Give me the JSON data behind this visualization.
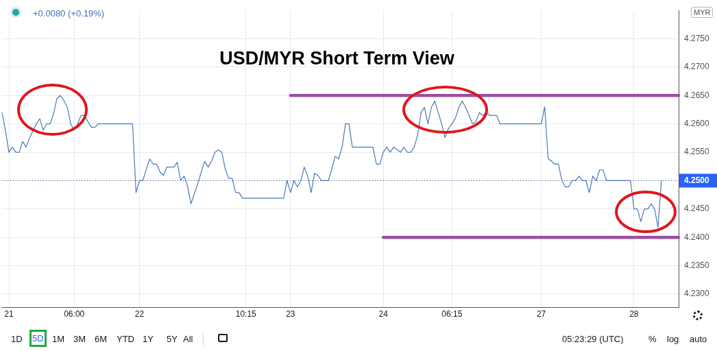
{
  "chart_data": {
    "type": "line",
    "title": "USD/MYR Short Term View",
    "categories": [
      null,
      null,
      "21",
      null,
      null,
      null,
      null,
      null,
      null,
      null,
      null,
      null,
      null,
      null,
      null,
      null,
      null,
      null,
      null,
      null,
      null,
      "06:00",
      null,
      null,
      null,
      null,
      null,
      null,
      null,
      null,
      null,
      null,
      null,
      null,
      null,
      null,
      null,
      null,
      null,
      null,
      "22",
      null,
      null,
      null,
      null,
      null,
      null,
      null,
      null,
      null,
      null,
      null,
      null,
      null,
      null,
      null,
      null,
      null,
      null,
      null,
      null,
      null,
      null,
      null,
      null,
      null,
      null,
      null,
      null,
      null,
      null,
      "10:15",
      null,
      null,
      null,
      null,
      null,
      null,
      null,
      null,
      null,
      null,
      null,
      null,
      "23",
      null,
      null,
      null,
      null,
      null,
      null,
      null,
      null,
      null,
      null,
      null,
      null,
      null,
      null,
      null,
      null,
      null,
      null,
      null,
      null,
      null,
      null,
      null,
      null,
      null,
      null,
      "24",
      null,
      null,
      null,
      null,
      null,
      null,
      null,
      null,
      null,
      null,
      null,
      null,
      null,
      null,
      null,
      null,
      null,
      null,
      null,
      "06:15",
      null,
      null,
      null,
      null,
      null,
      null,
      null,
      null,
      null,
      null,
      null,
      null,
      null,
      null,
      null,
      null,
      null,
      null,
      null,
      null,
      null,
      null,
      null,
      null,
      null,
      "27",
      null,
      null,
      null,
      null,
      null,
      null,
      null,
      null,
      null,
      null,
      null,
      null,
      null,
      null,
      null,
      null,
      null,
      null,
      null,
      null,
      null,
      null,
      null,
      null,
      null,
      null,
      "28",
      null,
      null,
      null,
      null,
      null,
      null,
      null,
      null,
      null,
      null,
      null,
      null,
      null
    ],
    "ylim": [
      4.2277,
      4.28
    ],
    "yticks": [
      {
        "value": 4.23,
        "label": "4.2300"
      },
      {
        "value": 4.235,
        "label": "4.2350"
      },
      {
        "value": 4.24,
        "label": "4.2400"
      },
      {
        "value": 4.245,
        "label": "4.2450"
      },
      {
        "value": 4.25,
        "label": null
      },
      {
        "value": 4.255,
        "label": "4.2550"
      },
      {
        "value": 4.26,
        "label": "4.2600"
      },
      {
        "value": 4.265,
        "label": "4.2650"
      },
      {
        "value": 4.27,
        "label": "4.2700"
      },
      {
        "value": 4.275,
        "label": "4.2750"
      }
    ],
    "grid": true,
    "legend": false,
    "marker": "none",
    "line_style": "solid",
    "ref_lines": [
      {
        "axis": "y",
        "value": 4.25,
        "label": "4.2500",
        "color": "#2f5597",
        "line_style": "dotted"
      }
    ],
    "annotations": [
      "+0.0080 (+0.19%)",
      "MYR",
      "1D",
      "5D",
      "1M",
      "3M",
      "6M",
      "YTD",
      "1Y",
      "5Y",
      "All",
      "05:23:29 (UTC)",
      "%",
      "log",
      "auto"
    ],
    "series": [
      {
        "color": "#4a78b8",
        "values": [
          4.262,
          4.2588,
          4.255,
          4.2559,
          4.255,
          4.255,
          4.2569,
          4.2559,
          4.2575,
          4.2588,
          4.26,
          4.2609,
          4.2589,
          4.26,
          4.26,
          4.2618,
          4.2645,
          4.265,
          4.2641,
          4.2629,
          4.26,
          4.2589,
          4.26,
          4.2615,
          4.2615,
          4.2604,
          4.2594,
          4.2594,
          4.26,
          4.26,
          4.26,
          4.26,
          4.26,
          4.26,
          4.26,
          4.26,
          4.26,
          4.26,
          4.26,
          4.2479,
          4.25,
          4.25,
          4.252,
          4.2538,
          4.2529,
          4.2529,
          4.2515,
          4.2509,
          4.2524,
          4.2524,
          4.2524,
          4.2532,
          4.25,
          4.2508,
          4.2491,
          4.2459,
          4.2477,
          4.2495,
          4.2515,
          4.2534,
          4.2524,
          4.2534,
          4.255,
          4.2554,
          4.255,
          4.252,
          4.2504,
          4.2504,
          4.2479,
          4.2479,
          4.2469,
          4.2469,
          4.2469,
          4.2469,
          4.2469,
          4.2469,
          4.2469,
          4.2469,
          4.2469,
          4.2469,
          4.2469,
          4.2469,
          4.2469,
          4.25,
          4.2479,
          4.25,
          4.2489,
          4.25,
          4.2524,
          4.2508,
          4.2479,
          4.2513,
          4.2509,
          4.25,
          4.25,
          4.25,
          4.252,
          4.2543,
          4.2538,
          4.2559,
          4.26,
          4.26,
          4.2559,
          4.2559,
          4.2559,
          4.2559,
          4.2559,
          4.2559,
          4.2559,
          4.2529,
          4.2529,
          4.255,
          4.2559,
          4.255,
          4.2559,
          4.2555,
          4.255,
          4.2559,
          4.255,
          4.255,
          4.2559,
          4.258,
          4.262,
          4.2629,
          4.26,
          4.2629,
          4.264,
          4.262,
          4.26,
          4.2576,
          4.2592,
          4.26,
          4.261,
          4.2629,
          4.264,
          4.2629,
          4.2615,
          4.26,
          4.2604,
          4.262,
          4.2615,
          4.262,
          4.2615,
          4.2615,
          4.2615,
          4.26,
          4.26,
          4.26,
          4.26,
          4.26,
          4.26,
          4.26,
          4.26,
          4.26,
          4.26,
          4.26,
          4.26,
          4.26,
          4.263,
          4.2539,
          4.2534,
          4.2529,
          4.2529,
          4.25,
          4.2489,
          4.2489,
          4.25,
          4.25,
          4.2508,
          4.25,
          4.25,
          4.2479,
          4.2508,
          4.25,
          4.2519,
          4.2519,
          4.25,
          4.25,
          4.25,
          4.25,
          4.25,
          4.25,
          4.25,
          4.25,
          4.245,
          4.245,
          4.2428,
          4.245,
          4.245,
          4.2459,
          4.245,
          4.2418,
          4.25,
          null,
          null,
          null,
          null,
          null
        ]
      },
      {
        "color": "#9b4ea3",
        "values": [
          null,
          null,
          null,
          null,
          null,
          null,
          null,
          null,
          null,
          null,
          null,
          null,
          null,
          null,
          null,
          null,
          null,
          null,
          null,
          null,
          null,
          null,
          null,
          null,
          null,
          null,
          null,
          null,
          null,
          null,
          null,
          null,
          null,
          null,
          null,
          null,
          null,
          null,
          null,
          null,
          null,
          null,
          null,
          null,
          null,
          null,
          null,
          null,
          null,
          null,
          null,
          null,
          null,
          null,
          null,
          null,
          null,
          null,
          null,
          null,
          null,
          null,
          null,
          null,
          null,
          null,
          null,
          null,
          null,
          null,
          null,
          null,
          null,
          null,
          null,
          null,
          null,
          null,
          null,
          null,
          null,
          null,
          null,
          null,
          4.265,
          4.265,
          4.265,
          4.265,
          4.265,
          4.265,
          4.265,
          4.265,
          4.265,
          4.265,
          4.265,
          4.265,
          4.265,
          4.265,
          4.265,
          4.265,
          4.265,
          4.265,
          4.265,
          4.265,
          4.265,
          4.265,
          4.265,
          4.265,
          4.265,
          4.265,
          4.265,
          4.265,
          4.265,
          4.265,
          4.265,
          4.265,
          4.265,
          4.265,
          4.265,
          4.265,
          4.265,
          4.265,
          4.265,
          4.265,
          4.265,
          4.265,
          4.265,
          4.265,
          4.265,
          4.265,
          4.265,
          4.265,
          4.265,
          4.265,
          4.265,
          4.265,
          4.265,
          4.265,
          4.265,
          4.265,
          4.265,
          4.265,
          4.265,
          4.265,
          4.265,
          4.265,
          4.265,
          4.265,
          4.265,
          4.265,
          4.265,
          4.265,
          4.265,
          4.265,
          4.265,
          4.265,
          4.265,
          4.265,
          4.265,
          4.265,
          4.265,
          4.265,
          4.265,
          4.265,
          4.265,
          4.265,
          4.265,
          4.265,
          4.265,
          4.265,
          4.265,
          4.265,
          4.265,
          4.265,
          4.265,
          4.265,
          4.265,
          4.265,
          4.265,
          4.265,
          4.265,
          4.265,
          4.265,
          4.265,
          4.265,
          4.265,
          4.265,
          4.265,
          4.265,
          4.265,
          4.265,
          4.265,
          4.265,
          4.265,
          4.265,
          4.265,
          4.265,
          4.265
        ]
      },
      {
        "color": "#9b4ea3",
        "values": [
          null,
          null,
          null,
          null,
          null,
          null,
          null,
          null,
          null,
          null,
          null,
          null,
          null,
          null,
          null,
          null,
          null,
          null,
          null,
          null,
          null,
          null,
          null,
          null,
          null,
          null,
          null,
          null,
          null,
          null,
          null,
          null,
          null,
          null,
          null,
          null,
          null,
          null,
          null,
          null,
          null,
          null,
          null,
          null,
          null,
          null,
          null,
          null,
          null,
          null,
          null,
          null,
          null,
          null,
          null,
          null,
          null,
          null,
          null,
          null,
          null,
          null,
          null,
          null,
          null,
          null,
          null,
          null,
          null,
          null,
          null,
          null,
          null,
          null,
          null,
          null,
          null,
          null,
          null,
          null,
          null,
          null,
          null,
          null,
          null,
          null,
          null,
          null,
          null,
          null,
          null,
          null,
          null,
          null,
          null,
          null,
          null,
          null,
          null,
          null,
          null,
          null,
          null,
          null,
          null,
          null,
          null,
          null,
          null,
          null,
          null,
          4.24,
          4.24,
          4.24,
          4.24,
          4.24,
          4.24,
          4.24,
          4.24,
          4.24,
          4.24,
          4.24,
          4.24,
          4.24,
          4.24,
          4.24,
          4.24,
          4.24,
          4.24,
          4.24,
          4.24,
          4.24,
          4.24,
          4.24,
          4.24,
          4.24,
          4.24,
          4.24,
          4.24,
          4.24,
          4.24,
          4.24,
          4.24,
          4.24,
          4.24,
          4.24,
          4.24,
          4.24,
          4.24,
          4.24,
          4.24,
          4.24,
          4.24,
          4.24,
          4.24,
          4.24,
          4.24,
          4.24,
          4.24,
          4.24,
          4.24,
          4.24,
          4.24,
          4.24,
          4.24,
          4.24,
          4.24,
          4.24,
          4.24,
          4.24,
          4.24,
          4.24,
          4.24,
          4.24,
          4.24,
          4.24,
          4.24,
          4.24,
          4.24,
          4.24,
          4.24,
          4.24,
          4.24,
          4.24,
          4.24,
          4.24,
          4.24,
          4.24,
          4.24,
          4.24,
          4.24,
          4.24,
          4.24,
          4.24,
          4.24,
          4.24,
          4.24,
          4.24
        ]
      }
    ]
  }
}
